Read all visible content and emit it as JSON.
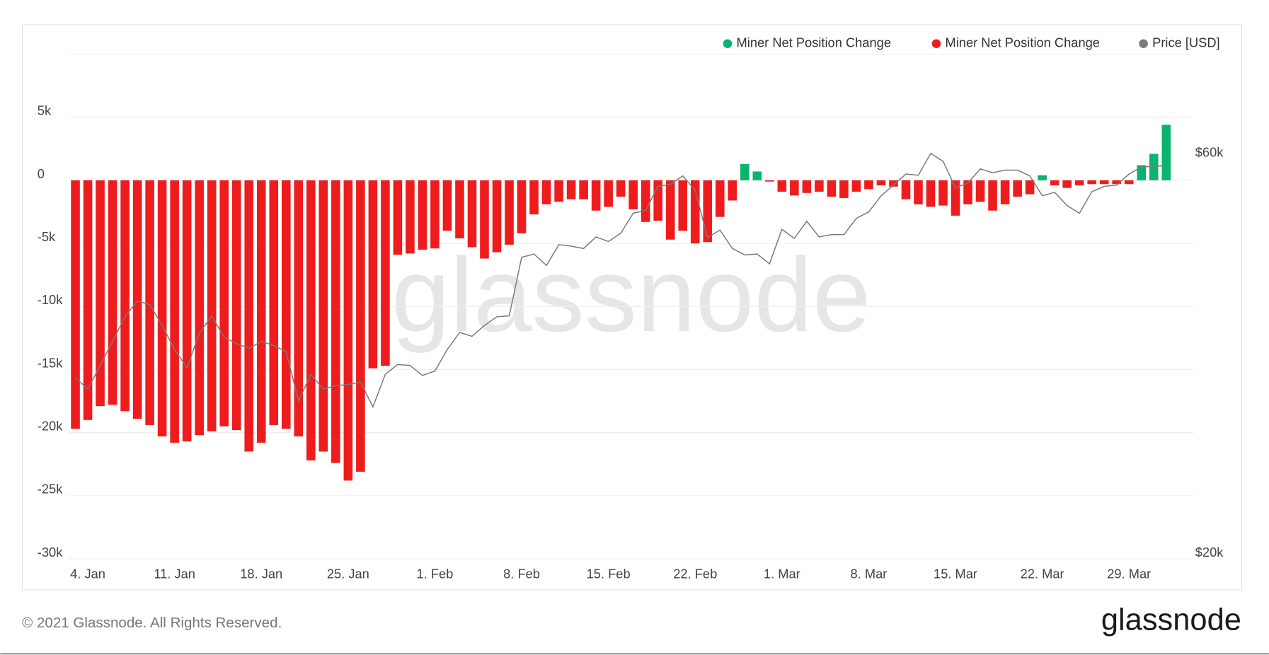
{
  "chart_data": {
    "type": "bar",
    "watermark": "glassnode",
    "copyright": "© 2021 Glassnode. All Rights Reserved.",
    "logo": "glassnode",
    "legend": "top-right",
    "grid": true,
    "categories": [
      null,
      "4. Jan",
      null,
      null,
      null,
      null,
      null,
      null,
      "11. Jan",
      null,
      null,
      null,
      null,
      null,
      null,
      "18. Jan",
      null,
      null,
      null,
      null,
      null,
      null,
      "25. Jan",
      null,
      null,
      null,
      null,
      null,
      null,
      "1. Feb",
      null,
      null,
      null,
      null,
      null,
      null,
      "8. Feb",
      null,
      null,
      null,
      null,
      null,
      null,
      "15. Feb",
      null,
      null,
      null,
      null,
      null,
      null,
      "22. Feb",
      null,
      null,
      null,
      null,
      null,
      null,
      "1. Mar",
      null,
      null,
      null,
      null,
      null,
      null,
      "8. Mar",
      null,
      null,
      null,
      null,
      null,
      null,
      "15. Mar",
      null,
      null,
      null,
      null,
      null,
      null,
      "22. Mar",
      null,
      null,
      null,
      null,
      null,
      null,
      "29. Mar",
      null,
      null,
      null
    ],
    "series": [
      {
        "name": "Miner Net Position Change",
        "color": "#0ab36e",
        "values": [
          null,
          null,
          null,
          null,
          null,
          null,
          null,
          null,
          null,
          null,
          null,
          null,
          null,
          null,
          null,
          null,
          null,
          null,
          null,
          null,
          null,
          null,
          null,
          null,
          null,
          null,
          null,
          null,
          null,
          null,
          null,
          null,
          null,
          null,
          null,
          null,
          null,
          null,
          null,
          null,
          null,
          null,
          null,
          null,
          null,
          null,
          null,
          null,
          null,
          null,
          null,
          null,
          null,
          null,
          1300,
          700,
          null,
          null,
          null,
          null,
          null,
          null,
          null,
          null,
          null,
          null,
          null,
          null,
          null,
          null,
          null,
          null,
          null,
          null,
          null,
          null,
          null,
          null,
          400,
          null,
          null,
          null,
          null,
          null,
          null,
          null,
          1200,
          2100,
          4400
        ]
      },
      {
        "name": "Miner Net Position Change",
        "color": "#ee1c1c",
        "values": [
          -19700,
          -19000,
          -17900,
          -17800,
          -18300,
          -18900,
          -19400,
          -20300,
          -20800,
          -20700,
          -20200,
          -19900,
          -19500,
          -19800,
          -21500,
          -20800,
          -19400,
          -19700,
          -20300,
          -22200,
          -21500,
          -22400,
          -23800,
          -23100,
          -14900,
          -14700,
          -5900,
          -5800,
          -5500,
          -5400,
          -4000,
          -4600,
          -5300,
          -6200,
          -5700,
          -5100,
          -4200,
          -2700,
          -1900,
          -1700,
          -1500,
          -1500,
          -2400,
          -2100,
          -1300,
          -2300,
          -3300,
          -3200,
          -4700,
          -4000,
          -5000,
          -4900,
          -2900,
          -1600,
          null,
          null,
          -100,
          -900,
          -1200,
          -1000,
          -900,
          -1300,
          -1400,
          -900,
          -700,
          -400,
          -500,
          -1500,
          -1900,
          -2100,
          -2000,
          -2800,
          -1900,
          -1700,
          -2400,
          -1900,
          -1300,
          -1100,
          null,
          -400,
          -600,
          -400,
          -300,
          -300,
          -300,
          -300,
          null,
          null,
          null
        ]
      },
      {
        "name": "Price [USD]",
        "color": "#7a7a7a",
        "axis": "y2",
        "values": [
          32400,
          31400,
          33500,
          35800,
          38300,
          40000,
          39600,
          37400,
          35000,
          33300,
          36600,
          38400,
          36200,
          35600,
          35100,
          35800,
          35400,
          34800,
          30400,
          32700,
          31400,
          31700,
          31800,
          32000,
          29900,
          32700,
          33600,
          33500,
          32600,
          33000,
          35000,
          36700,
          36300,
          37400,
          38300,
          38400,
          45100,
          45500,
          44100,
          46700,
          46500,
          46200,
          47700,
          47100,
          48200,
          50900,
          51300,
          54800,
          55100,
          56400,
          54200,
          47600,
          48600,
          46200,
          45400,
          45500,
          44300,
          48700,
          47500,
          49800,
          47700,
          48000,
          48000,
          50200,
          51100,
          53400,
          55000,
          56700,
          56500,
          60000,
          58700,
          54600,
          55300,
          57500,
          56900,
          57300,
          57300,
          56400,
          53400,
          53900,
          52000,
          50900,
          54000,
          54800,
          55000,
          56700,
          57800,
          57900,
          58000
        ]
      }
    ],
    "ylim": [
      -30000,
      10000
    ],
    "yticks": [
      {
        "value": -30000,
        "label": "-30k"
      },
      {
        "value": -25000,
        "label": "-25k"
      },
      {
        "value": -20000,
        "label": "-20k"
      },
      {
        "value": -15000,
        "label": "-15k"
      },
      {
        "value": -10000,
        "label": "-10k"
      },
      {
        "value": -5000,
        "label": "-5k"
      },
      0,
      {
        "value": 5000,
        "label": "5k"
      }
    ],
    "y2lim": [
      19700,
      78800
    ],
    "y2log": true,
    "y2ticks": [
      {
        "value": 20000,
        "label": "$20k"
      },
      {
        "value": 60000,
        "label": "$60k"
      }
    ]
  }
}
